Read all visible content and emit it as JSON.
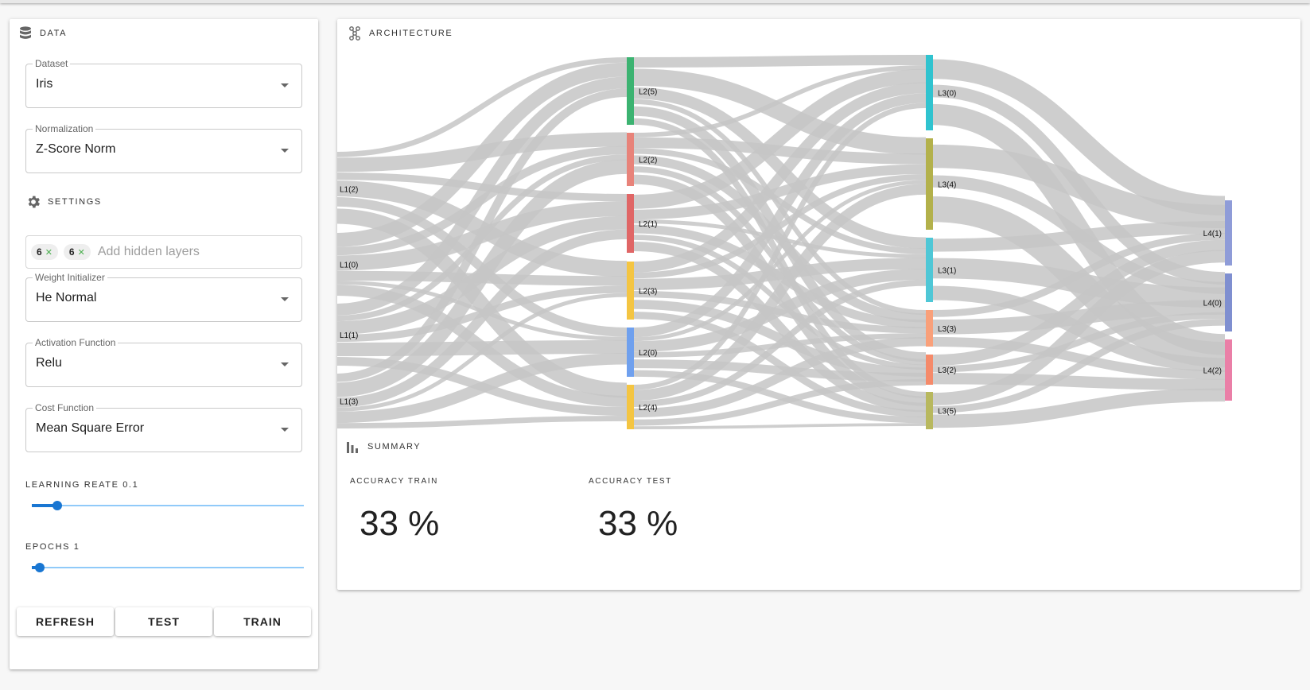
{
  "data_section": {
    "title": "DATA",
    "icon": "database-icon"
  },
  "dataset": {
    "label": "Dataset",
    "value": "Iris"
  },
  "normalization": {
    "label": "Normalization",
    "value": "Z-Score Norm"
  },
  "settings_section": {
    "title": "SETTINGS",
    "icon": "gear-icon"
  },
  "hidden_layers": {
    "chips": [
      "6",
      "6"
    ],
    "placeholder": "Add hidden layers"
  },
  "weight_initializer": {
    "label": "Weight Initializer",
    "value": "He Normal"
  },
  "activation": {
    "label": "Activation Function",
    "value": "Relu"
  },
  "cost": {
    "label": "Cost Function",
    "value": "Mean Square Error"
  },
  "learning_rate": {
    "label": "LEARNING REATE 0.1",
    "value": 0.1,
    "fraction": 0.1
  },
  "epochs": {
    "label": "EPOCHS 1",
    "value": 1,
    "fraction": 0.03
  },
  "buttons": {
    "refresh": "REFRESH",
    "test": "TEST",
    "train": "TRAIN"
  },
  "architecture_section": {
    "title": "ARCHITECTURE",
    "icon": "network-icon"
  },
  "summary_section": {
    "title": "SUMMARY",
    "icon": "bar-chart-icon"
  },
  "accuracy": {
    "train_label": "ACCURACY TRAIN",
    "train_value": "33 %",
    "test_label": "ACCURACY TEST",
    "test_value": "33 %"
  },
  "network": {
    "layers": [
      [
        "L1(2)",
        "L1(0)",
        "L1(1)",
        "L1(3)"
      ],
      [
        "L2(5)",
        "L2(2)",
        "L2(1)",
        "L2(3)",
        "L2(0)",
        "L2(4)"
      ],
      [
        "L3(0)",
        "L3(4)",
        "L3(1)",
        "L3(3)",
        "L3(2)",
        "L3(5)"
      ],
      [
        "L4(1)",
        "L4(0)",
        "L4(2)"
      ]
    ],
    "colors": [
      [
        "#b26acb",
        "#6fa0ee",
        "#4cb57d",
        "#c37fd1"
      ],
      [
        "#3cb371",
        "#e8837a",
        "#e06666",
        "#f4c542",
        "#6fa0ee",
        "#f4c542"
      ],
      [
        "#30c3cf",
        "#b3b14b",
        "#4fc7d6",
        "#f9a07a",
        "#f58a6a",
        "#b8b85e"
      ],
      [
        "#8f9cd8",
        "#7f8fd0",
        "#ea7fa7"
      ]
    ],
    "link_color": "#c6c6c6"
  }
}
